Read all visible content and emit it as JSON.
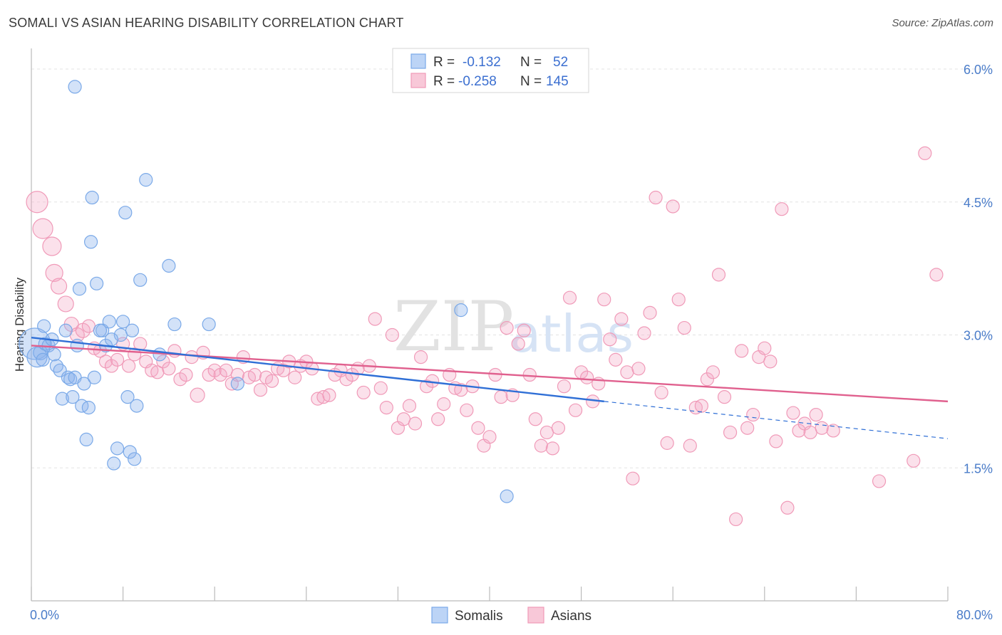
{
  "title": "SOMALI VS ASIAN HEARING DISABILITY CORRELATION CHART",
  "source": "Source: ZipAtlas.com",
  "watermark": {
    "zip": "ZIP",
    "atlas": "atlas"
  },
  "legend": {
    "r_label": "R =",
    "n_label": "N =",
    "rows": [
      {
        "r": "-0.132",
        "n": "52"
      },
      {
        "r": "-0.258",
        "n": "145"
      }
    ]
  },
  "chart_data": {
    "type": "scatter",
    "title": "SOMALI VS ASIAN HEARING DISABILITY CORRELATION CHART",
    "xlabel": "",
    "ylabel": "Hearing Disability",
    "xlim": [
      0,
      80
    ],
    "ylim": [
      0,
      6.3
    ],
    "x_tick_labels": [
      "0.0%",
      "80.0%"
    ],
    "y_ticks": [
      1.5,
      3.0,
      4.5,
      6.0
    ],
    "y_tick_labels": [
      "1.5%",
      "3.0%",
      "4.5%",
      "6.0%"
    ],
    "grid": "horizontal dashed",
    "legend_position": "top-center",
    "colors": {
      "somalis": "#7aa9e8",
      "asians": "#f09ab8",
      "somalis_line": "#2f6fd6",
      "asians_line": "#e0608e"
    },
    "series": [
      {
        "name": "Somalis",
        "trend": {
          "x0": 0,
          "y0": 2.97,
          "x1": 50,
          "y1": 2.25,
          "dashed_to_x": 80,
          "dashed_to_y": 1.83
        },
        "points": [
          [
            0.3,
            2.9,
            22
          ],
          [
            0.5,
            2.75,
            14
          ],
          [
            0.8,
            2.8,
            10
          ],
          [
            1,
            2.72,
            9
          ],
          [
            1.2,
            2.9,
            9
          ],
          [
            1.1,
            3.1,
            9
          ],
          [
            1.5,
            2.88,
            9
          ],
          [
            1.8,
            2.95,
            9
          ],
          [
            2,
            2.78,
            9
          ],
          [
            2.2,
            2.65,
            9
          ],
          [
            2.5,
            2.6,
            9
          ],
          [
            2.7,
            2.28,
            9
          ],
          [
            3,
            3.05,
            9
          ],
          [
            3.2,
            2.52,
            9
          ],
          [
            3.4,
            2.5,
            9
          ],
          [
            3.6,
            2.3,
            9
          ],
          [
            3.8,
            2.52,
            9
          ],
          [
            4,
            2.88,
            9
          ],
          [
            4.2,
            3.52,
            9
          ],
          [
            4.4,
            2.2,
            9
          ],
          [
            4.6,
            2.45,
            9
          ],
          [
            4.8,
            1.82,
            9
          ],
          [
            5,
            2.18,
            9
          ],
          [
            5.2,
            4.05,
            9
          ],
          [
            5.3,
            4.55,
            9
          ],
          [
            5.5,
            2.52,
            9
          ],
          [
            5.7,
            3.58,
            9
          ],
          [
            3.8,
            5.8,
            9
          ],
          [
            6.2,
            3.05,
            9
          ],
          [
            6.5,
            2.88,
            9
          ],
          [
            6.8,
            3.15,
            9
          ],
          [
            7.2,
            1.55,
            9
          ],
          [
            7.5,
            1.72,
            9
          ],
          [
            7.8,
            3.0,
            9
          ],
          [
            8,
            3.15,
            9
          ],
          [
            8.2,
            4.38,
            9
          ],
          [
            8.4,
            2.3,
            9
          ],
          [
            8.6,
            1.68,
            9
          ],
          [
            8.8,
            3.05,
            9
          ],
          [
            9,
            1.6,
            9
          ],
          [
            9.2,
            2.2,
            9
          ],
          [
            9.5,
            3.62,
            9
          ],
          [
            10,
            4.75,
            9
          ],
          [
            11.2,
            2.78,
            9
          ],
          [
            12,
            3.78,
            9
          ],
          [
            12.5,
            3.12,
            9
          ],
          [
            15.5,
            3.12,
            9
          ],
          [
            18,
            2.45,
            9
          ],
          [
            37.5,
            3.28,
            9
          ],
          [
            41.5,
            1.18,
            9
          ],
          [
            6,
            3.05,
            9
          ],
          [
            7,
            2.95,
            9
          ]
        ]
      },
      {
        "name": "Asians",
        "trend": {
          "x0": 0,
          "y0": 2.88,
          "x1": 80,
          "y1": 2.25
        },
        "points": [
          [
            0.5,
            4.5,
            15
          ],
          [
            1,
            4.2,
            14
          ],
          [
            1.8,
            4.0,
            13
          ],
          [
            2,
            3.7,
            12
          ],
          [
            2.4,
            3.55,
            11
          ],
          [
            3,
            3.35,
            11
          ],
          [
            3.5,
            3.12,
            10
          ],
          [
            4,
            3.0,
            10
          ],
          [
            4.5,
            3.05,
            10
          ],
          [
            5,
            3.1,
            9
          ],
          [
            5.5,
            2.85,
            9
          ],
          [
            6,
            2.82,
            9
          ],
          [
            6.5,
            2.7,
            9
          ],
          [
            7,
            2.65,
            9
          ],
          [
            7.5,
            2.72,
            9
          ],
          [
            8,
            2.9,
            9
          ],
          [
            8.5,
            2.65,
            9
          ],
          [
            9,
            2.78,
            9
          ],
          [
            9.5,
            2.9,
            9
          ],
          [
            10,
            2.7,
            9
          ],
          [
            10.5,
            2.6,
            9
          ],
          [
            11,
            2.58,
            9
          ],
          [
            11.5,
            2.7,
            9
          ],
          [
            12,
            2.62,
            9
          ],
          [
            12.5,
            2.82,
            9
          ],
          [
            13,
            2.5,
            9
          ],
          [
            13.5,
            2.55,
            9
          ],
          [
            14,
            2.75,
            9
          ],
          [
            14.5,
            2.32,
            10
          ],
          [
            15,
            2.8,
            9
          ],
          [
            15.5,
            2.55,
            9
          ],
          [
            16,
            2.6,
            9
          ],
          [
            16.5,
            2.55,
            9
          ],
          [
            17,
            2.6,
            9
          ],
          [
            17.5,
            2.45,
            9
          ],
          [
            18,
            2.55,
            9
          ],
          [
            18.5,
            2.75,
            9
          ],
          [
            19,
            2.52,
            9
          ],
          [
            19.5,
            2.55,
            9
          ],
          [
            20,
            2.38,
            9
          ],
          [
            20.5,
            2.52,
            9
          ],
          [
            21,
            2.48,
            9
          ],
          [
            21.5,
            2.62,
            9
          ],
          [
            22,
            2.6,
            9
          ],
          [
            22.5,
            2.7,
            9
          ],
          [
            23,
            2.52,
            9
          ],
          [
            23.5,
            2.65,
            9
          ],
          [
            24,
            2.7,
            9
          ],
          [
            24.5,
            2.62,
            9
          ],
          [
            25,
            2.28,
            9
          ],
          [
            25.5,
            2.3,
            9
          ],
          [
            26,
            2.32,
            9
          ],
          [
            26.5,
            2.55,
            9
          ],
          [
            27,
            2.6,
            9
          ],
          [
            27.5,
            2.5,
            9
          ],
          [
            28,
            2.55,
            9
          ],
          [
            28.5,
            2.62,
            9
          ],
          [
            29,
            2.35,
            9
          ],
          [
            29.5,
            2.65,
            9
          ],
          [
            30,
            3.18,
            9
          ],
          [
            30.5,
            2.4,
            9
          ],
          [
            31,
            2.18,
            9
          ],
          [
            31.5,
            3.0,
            9
          ],
          [
            32,
            1.95,
            9
          ],
          [
            32.5,
            2.05,
            9
          ],
          [
            33,
            2.2,
            9
          ],
          [
            33.5,
            2.0,
            9
          ],
          [
            34,
            2.75,
            9
          ],
          [
            34.5,
            2.42,
            9
          ],
          [
            35,
            2.48,
            9
          ],
          [
            35.5,
            2.05,
            9
          ],
          [
            36,
            2.22,
            9
          ],
          [
            36.5,
            2.55,
            9
          ],
          [
            37,
            2.4,
            9
          ],
          [
            37.5,
            2.38,
            9
          ],
          [
            38,
            2.15,
            9
          ],
          [
            38.5,
            2.42,
            9
          ],
          [
            39,
            1.95,
            9
          ],
          [
            39.5,
            1.75,
            9
          ],
          [
            40,
            1.85,
            9
          ],
          [
            40.5,
            2.55,
            9
          ],
          [
            41,
            2.3,
            9
          ],
          [
            41.5,
            3.08,
            9
          ],
          [
            42,
            2.32,
            9
          ],
          [
            42.5,
            2.9,
            9
          ],
          [
            43,
            3.05,
            9
          ],
          [
            43.5,
            2.55,
            9
          ],
          [
            44,
            2.05,
            9
          ],
          [
            44.5,
            1.75,
            9
          ],
          [
            45,
            1.9,
            9
          ],
          [
            45.5,
            1.72,
            9
          ],
          [
            46,
            1.95,
            9
          ],
          [
            46.5,
            2.42,
            9
          ],
          [
            47,
            3.42,
            9
          ],
          [
            47.5,
            2.15,
            9
          ],
          [
            48,
            2.58,
            9
          ],
          [
            48.5,
            2.52,
            9
          ],
          [
            49,
            2.25,
            9
          ],
          [
            49.5,
            2.45,
            9
          ],
          [
            50,
            3.4,
            9
          ],
          [
            50.5,
            2.95,
            9
          ],
          [
            51,
            2.72,
            9
          ],
          [
            51.5,
            3.18,
            9
          ],
          [
            52,
            2.58,
            9
          ],
          [
            52.5,
            1.38,
            9
          ],
          [
            53,
            2.62,
            9
          ],
          [
            53.5,
            3.02,
            9
          ],
          [
            54,
            3.25,
            9
          ],
          [
            54.5,
            4.55,
            9
          ],
          [
            55,
            2.35,
            9
          ],
          [
            55.5,
            1.78,
            9
          ],
          [
            56,
            4.45,
            9
          ],
          [
            56.5,
            3.4,
            9
          ],
          [
            57,
            3.08,
            9
          ],
          [
            57.5,
            1.75,
            9
          ],
          [
            58,
            2.18,
            9
          ],
          [
            58.5,
            2.2,
            9
          ],
          [
            59,
            2.5,
            9
          ],
          [
            59.5,
            2.58,
            9
          ],
          [
            60,
            3.68,
            9
          ],
          [
            60.5,
            2.3,
            9
          ],
          [
            61,
            1.9,
            9
          ],
          [
            61.5,
            0.92,
            9
          ],
          [
            62,
            2.82,
            9
          ],
          [
            62.5,
            1.95,
            9
          ],
          [
            63,
            2.1,
            9
          ],
          [
            63.5,
            2.75,
            9
          ],
          [
            64,
            2.85,
            9
          ],
          [
            64.5,
            2.7,
            9
          ],
          [
            65,
            1.8,
            9
          ],
          [
            65.5,
            4.42,
            9
          ],
          [
            66,
            1.05,
            9
          ],
          [
            66.5,
            2.12,
            9
          ],
          [
            67,
            1.92,
            9
          ],
          [
            67.5,
            2.0,
            9
          ],
          [
            68,
            1.9,
            9
          ],
          [
            68.5,
            2.1,
            9
          ],
          [
            69,
            1.95,
            9
          ],
          [
            70,
            1.92,
            9
          ],
          [
            74,
            1.35,
            9
          ],
          [
            77,
            1.58,
            9
          ],
          [
            78,
            5.05,
            9
          ],
          [
            79,
            3.68,
            9
          ]
        ]
      }
    ]
  },
  "bottom_legend": [
    {
      "label": "Somalis"
    },
    {
      "label": "Asians"
    }
  ]
}
